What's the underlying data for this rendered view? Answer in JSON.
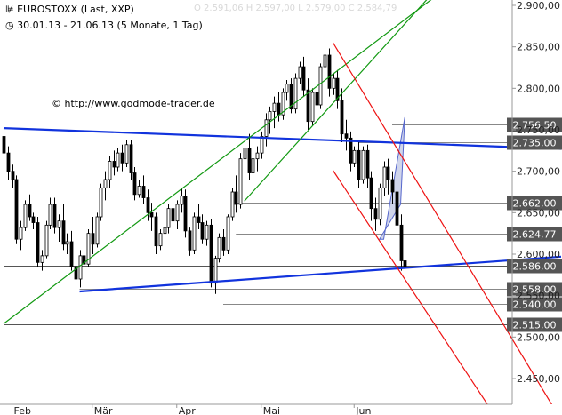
{
  "header": {
    "logo_glyph": "⊯",
    "title": "EUROSTOXX (Last, XXP)",
    "clock_glyph": "◷",
    "date_range": "30.01.13 - 21.06.13 (5 Monate, 1 Tag)",
    "watermark_ohlc": "O 2.591,06  H 2.597,00  L 2.579,00  C 2.584,79"
  },
  "copyright": "© http://www.godmode-trader.de",
  "colors": {
    "up_candle": "#ffffff",
    "down_candle": "#000000",
    "blue_line": "#1133dd",
    "green_line": "#119911",
    "red_line": "#ee1111",
    "grid": "#999999",
    "label_bg": "#555555",
    "label_text": "#ffffff"
  },
  "chart_data": {
    "type": "candlestick",
    "title": "EUROSTOXX (Last, XXP)",
    "subtitle": "30.01.13 - 21.06.13 (5 Monate, 1 Tag)",
    "ylim": [
      2420,
      2910
    ],
    "y_ticks": [
      "2.900,00",
      "2.850,00",
      "2.800,00",
      "2.750,00",
      "2.700,00",
      "2.650,00",
      "2.600,00",
      "2.550,00",
      "2.500,00",
      "2.450,00"
    ],
    "y_tick_values": [
      2900,
      2850,
      2800,
      2750,
      2700,
      2650,
      2600,
      2550,
      2500,
      2450
    ],
    "x_labels": [
      "Feb",
      "Mär",
      "Apr",
      "Mai",
      "Jun"
    ],
    "x_label_days": [
      2,
      21,
      41,
      61,
      83
    ],
    "n_days": 101,
    "level_labels": [
      {
        "text": "2.756,50",
        "value": 2756.5,
        "start_day": 92
      },
      {
        "text": "2.735,00",
        "value": 2735,
        "start_day": 84
      },
      {
        "text": "2.662,00",
        "value": 2662,
        "start_day": 55
      },
      {
        "text": "2.624,77",
        "value": 2624.77,
        "start_day": 55
      },
      {
        "text": "2.586,00",
        "value": 2586,
        "start_day": 0
      },
      {
        "text": "2.558,00",
        "value": 2558,
        "start_day": 18
      },
      {
        "text": "2.540,00",
        "value": 2540,
        "start_day": 52
      },
      {
        "text": "2.515,00",
        "value": 2515,
        "start_day": 0
      }
    ],
    "trendlines": [
      {
        "name": "blue-resistance",
        "color": "blue",
        "width": 2.2,
        "p1": [
          0,
          2752
        ],
        "p2": [
          132,
          2727
        ]
      },
      {
        "name": "blue-support",
        "color": "blue",
        "width": 2.2,
        "p1": [
          18,
          2555
        ],
        "p2": [
          132,
          2597
        ]
      },
      {
        "name": "green-channel-upper",
        "color": "green",
        "width": 1.2,
        "p1": [
          57,
          2664
        ],
        "p2": [
          110,
          2962
        ]
      },
      {
        "name": "green-channel-lower",
        "color": "green",
        "width": 1.2,
        "p1": [
          0,
          2516
        ],
        "p2": [
          115,
          2960
        ]
      },
      {
        "name": "red-channel-upper",
        "color": "red",
        "width": 1.2,
        "p1": [
          78,
          2855
        ],
        "p2": [
          132,
          2400
        ]
      },
      {
        "name": "red-channel-lower",
        "color": "red",
        "width": 1.2,
        "p1": [
          78,
          2701
        ],
        "p2": [
          117,
          2400
        ]
      }
    ],
    "shaded_flag": {
      "points": [
        [
          90,
          2618
        ],
        [
          95,
          2765
        ],
        [
          94,
          2660
        ],
        [
          89,
          2618
        ]
      ]
    },
    "candles": [
      [
        2742,
        2748,
        2718,
        2722
      ],
      [
        2722,
        2730,
        2690,
        2700
      ],
      [
        2700,
        2708,
        2680,
        2690
      ],
      [
        2690,
        2695,
        2612,
        2618
      ],
      [
        2618,
        2640,
        2605,
        2632
      ],
      [
        2632,
        2665,
        2628,
        2660
      ],
      [
        2660,
        2672,
        2640,
        2645
      ],
      [
        2645,
        2650,
        2630,
        2638
      ],
      [
        2638,
        2645,
        2585,
        2590
      ],
      [
        2590,
        2605,
        2580,
        2598
      ],
      [
        2598,
        2640,
        2595,
        2635
      ],
      [
        2635,
        2668,
        2630,
        2660
      ],
      [
        2660,
        2668,
        2625,
        2632
      ],
      [
        2632,
        2648,
        2615,
        2640
      ],
      [
        2640,
        2660,
        2605,
        2612
      ],
      [
        2612,
        2625,
        2600,
        2615
      ],
      [
        2615,
        2628,
        2580,
        2585
      ],
      [
        2585,
        2600,
        2555,
        2570
      ],
      [
        2570,
        2605,
        2560,
        2598
      ],
      [
        2598,
        2612,
        2575,
        2588
      ],
      [
        2588,
        2630,
        2585,
        2625
      ],
      [
        2625,
        2645,
        2600,
        2612
      ],
      [
        2612,
        2650,
        2608,
        2645
      ],
      [
        2645,
        2685,
        2640,
        2680
      ],
      [
        2680,
        2700,
        2665,
        2690
      ],
      [
        2690,
        2718,
        2680,
        2712
      ],
      [
        2712,
        2725,
        2695,
        2705
      ],
      [
        2705,
        2728,
        2700,
        2722
      ],
      [
        2722,
        2732,
        2700,
        2710
      ],
      [
        2710,
        2738,
        2705,
        2732
      ],
      [
        2732,
        2738,
        2690,
        2698
      ],
      [
        2698,
        2705,
        2665,
        2672
      ],
      [
        2672,
        2690,
        2668,
        2682
      ],
      [
        2682,
        2695,
        2660,
        2668
      ],
      [
        2668,
        2678,
        2640,
        2650
      ],
      [
        2650,
        2662,
        2628,
        2645
      ],
      [
        2645,
        2650,
        2600,
        2610
      ],
      [
        2610,
        2630,
        2605,
        2625
      ],
      [
        2625,
        2640,
        2615,
        2632
      ],
      [
        2632,
        2660,
        2625,
        2655
      ],
      [
        2655,
        2672,
        2635,
        2640
      ],
      [
        2640,
        2665,
        2630,
        2660
      ],
      [
        2660,
        2680,
        2650,
        2670
      ],
      [
        2670,
        2678,
        2620,
        2628
      ],
      [
        2628,
        2632,
        2598,
        2605
      ],
      [
        2605,
        2650,
        2600,
        2645
      ],
      [
        2645,
        2660,
        2630,
        2638
      ],
      [
        2638,
        2648,
        2612,
        2618
      ],
      [
        2618,
        2640,
        2610,
        2635
      ],
      [
        2635,
        2642,
        2560,
        2565
      ],
      [
        2565,
        2598,
        2552,
        2595
      ],
      [
        2595,
        2625,
        2590,
        2620
      ],
      [
        2620,
        2630,
        2598,
        2605
      ],
      [
        2605,
        2648,
        2600,
        2645
      ],
      [
        2645,
        2680,
        2640,
        2675
      ],
      [
        2675,
        2695,
        2650,
        2660
      ],
      [
        2660,
        2722,
        2655,
        2715
      ],
      [
        2715,
        2735,
        2700,
        2728
      ],
      [
        2728,
        2745,
        2690,
        2698
      ],
      [
        2698,
        2722,
        2680,
        2715
      ],
      [
        2715,
        2730,
        2700,
        2722
      ],
      [
        2722,
        2748,
        2715,
        2742
      ],
      [
        2742,
        2770,
        2730,
        2762
      ],
      [
        2762,
        2778,
        2745,
        2772
      ],
      [
        2772,
        2790,
        2752,
        2782
      ],
      [
        2782,
        2795,
        2760,
        2768
      ],
      [
        2768,
        2800,
        2762,
        2795
      ],
      [
        2795,
        2810,
        2785,
        2805
      ],
      [
        2805,
        2812,
        2770,
        2775
      ],
      [
        2775,
        2818,
        2770,
        2812
      ],
      [
        2812,
        2832,
        2805,
        2826
      ],
      [
        2826,
        2838,
        2790,
        2798
      ],
      [
        2798,
        2812,
        2750,
        2760
      ],
      [
        2760,
        2800,
        2755,
        2795
      ],
      [
        2795,
        2808,
        2772,
        2780
      ],
      [
        2780,
        2830,
        2775,
        2826
      ],
      [
        2826,
        2852,
        2815,
        2840
      ],
      [
        2840,
        2848,
        2790,
        2800
      ],
      [
        2800,
        2818,
        2792,
        2812
      ],
      [
        2812,
        2822,
        2775,
        2785
      ],
      [
        2785,
        2800,
        2735,
        2745
      ],
      [
        2745,
        2762,
        2725,
        2740
      ],
      [
        2740,
        2748,
        2700,
        2710
      ],
      [
        2710,
        2730,
        2705,
        2725
      ],
      [
        2725,
        2735,
        2680,
        2690
      ],
      [
        2690,
        2730,
        2685,
        2725
      ],
      [
        2725,
        2732,
        2680,
        2692
      ],
      [
        2692,
        2700,
        2640,
        2655
      ],
      [
        2655,
        2668,
        2628,
        2642
      ],
      [
        2642,
        2685,
        2635,
        2680
      ],
      [
        2680,
        2712,
        2670,
        2705
      ],
      [
        2705,
        2715,
        2672,
        2690
      ],
      [
        2690,
        2700,
        2660,
        2675
      ],
      [
        2675,
        2690,
        2620,
        2635
      ],
      [
        2635,
        2648,
        2580,
        2592
      ],
      [
        2592,
        2598,
        2578,
        2585
      ]
    ]
  }
}
